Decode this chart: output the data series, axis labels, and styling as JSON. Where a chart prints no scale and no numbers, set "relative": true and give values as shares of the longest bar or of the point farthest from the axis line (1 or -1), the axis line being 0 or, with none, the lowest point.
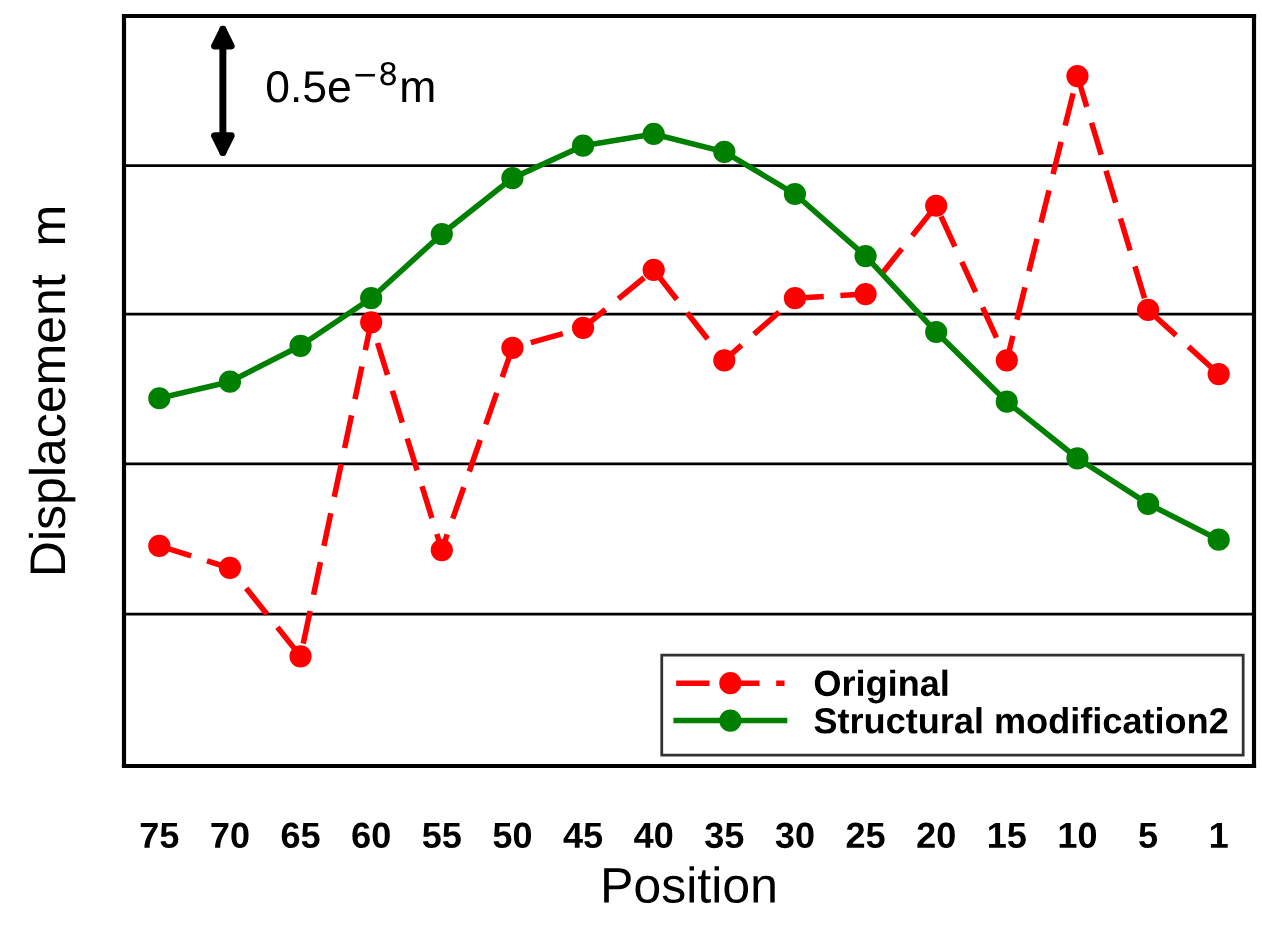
{
  "chart_data": {
    "type": "line",
    "relative": true,
    "xlabel": "Position",
    "ylabel": "Displacement  m",
    "categories": [
      "75",
      "70",
      "65",
      "60",
      "55",
      "50",
      "45",
      "40",
      "35",
      "30",
      "25",
      "20",
      "15",
      "10",
      "5",
      "1"
    ],
    "series": [
      {
        "name": "Original",
        "color": "#ff0000",
        "line_style": "dashed",
        "values": [
          0.319,
          0.287,
          0.159,
          0.643,
          0.313,
          0.606,
          0.635,
          0.719,
          0.588,
          0.678,
          0.684,
          0.812,
          0.588,
          1,
          0.661,
          0.568
        ]
      },
      {
        "name": "Structural modification2",
        "color": "#008000",
        "line_style": "solid",
        "values": [
          0.533,
          0.557,
          0.609,
          0.678,
          0.771,
          0.852,
          0.899,
          0.916,
          0.89,
          0.829,
          0.739,
          0.629,
          0.528,
          0.446,
          0.38,
          0.328
        ]
      }
    ],
    "marker": "circle",
    "grid": "y",
    "legend": "bottom right",
    "annotations": [
      "0.5e$^{−8}$m"
    ]
  }
}
